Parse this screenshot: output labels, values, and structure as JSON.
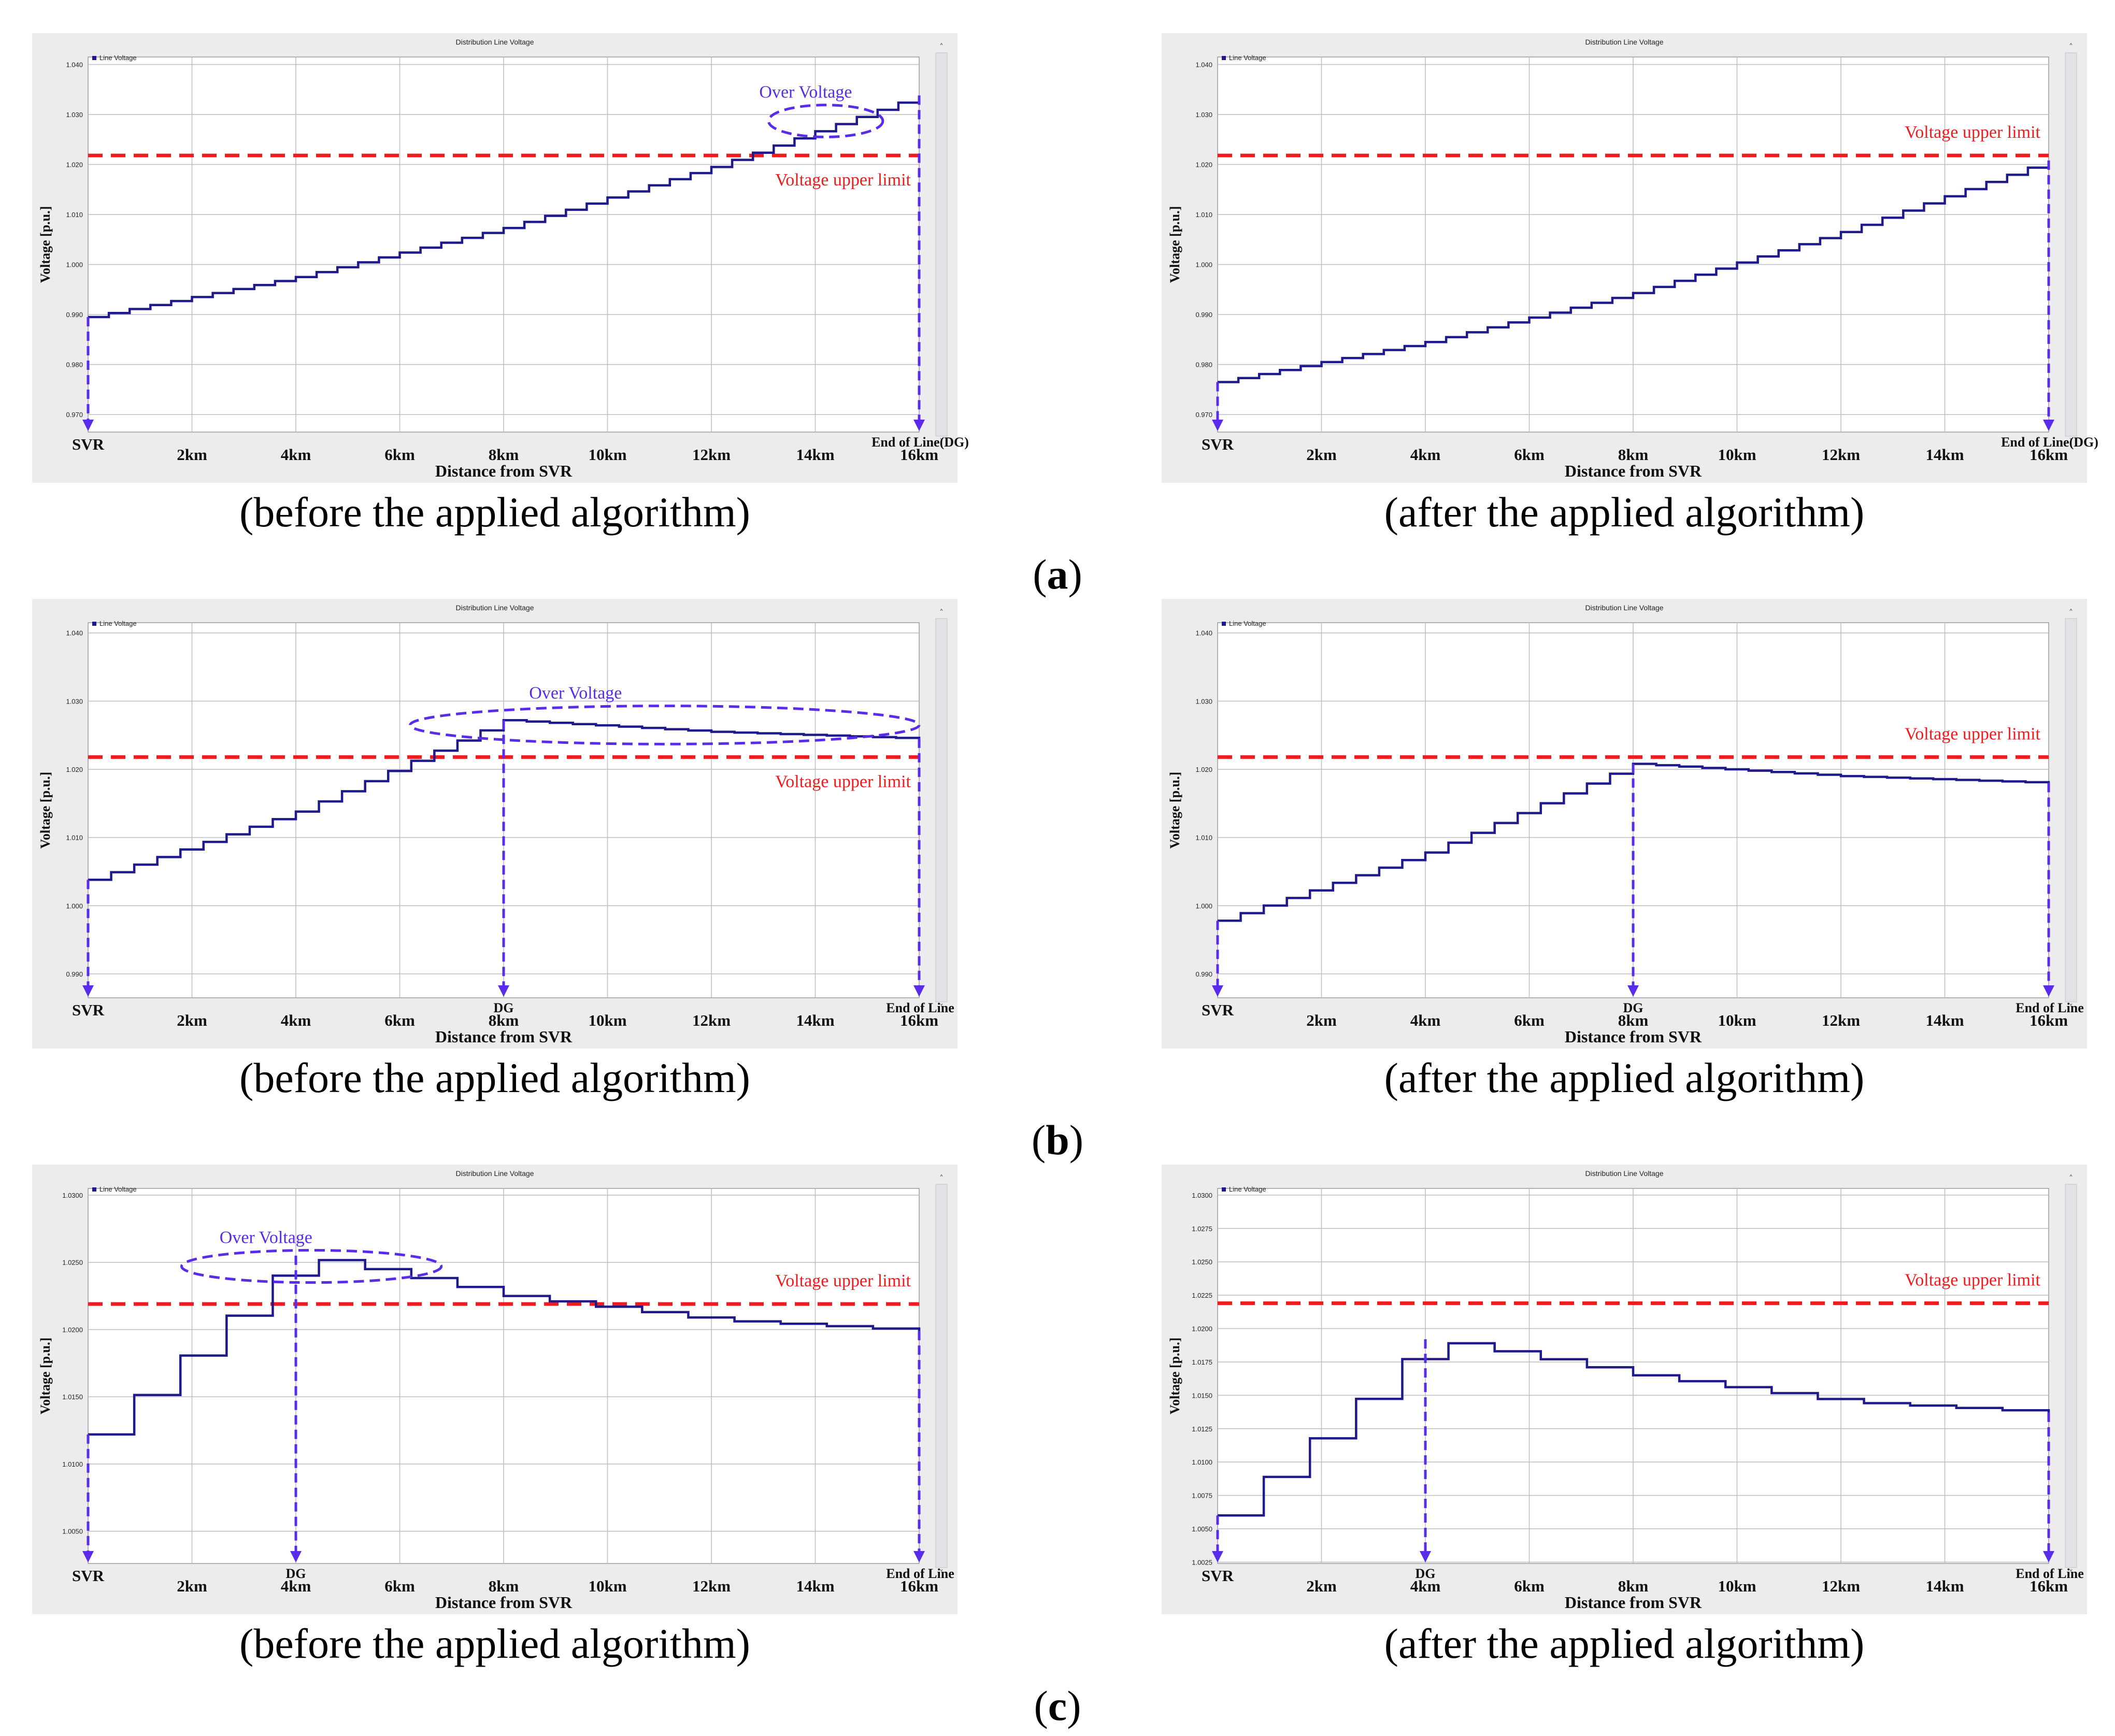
{
  "rows": [
    {
      "label_letter": "a",
      "caption_before": "(before the applied algorithm)",
      "caption_after": "(after the applied algorithm)"
    },
    {
      "label_letter": "b",
      "caption_before": "(before the applied algorithm)",
      "caption_after": "(after the applied algorithm)"
    },
    {
      "label_letter": "c",
      "caption_before": "(before the applied algorithm)",
      "caption_after": "(after the applied algorithm)"
    }
  ],
  "colors": {
    "line": "#1f1a8c",
    "limit": "#ee1c1c",
    "annotation": "#5b2bea",
    "grid": "#bcbcc4",
    "panel_bg": "#ececec",
    "plot_bg": "#ffffff"
  },
  "chart_data": [
    {
      "id": "a-before",
      "type": "line",
      "title": "Distribution Line Voltage",
      "legend": "Line Voltage",
      "legend_position": "top-left",
      "xlabel": "Distance from SVR",
      "ylabel": "Voltage [p.u.]",
      "xlim": [
        0,
        16
      ],
      "ylim": [
        0.9665,
        1.0415
      ],
      "yticks": [
        0.97,
        0.98,
        0.99,
        1.0,
        1.01,
        1.02,
        1.03,
        1.04
      ],
      "ytick_labels": [
        "0.970",
        "0.980",
        "0.990",
        "1.000",
        "1.010",
        "1.020",
        "1.030",
        "1.040"
      ],
      "xtick_labels": [
        {
          "x": 0,
          "text": "SVR"
        },
        {
          "x": 2,
          "text": "2km"
        },
        {
          "x": 4,
          "text": "4km"
        },
        {
          "x": 6,
          "text": "6km"
        },
        {
          "x": 8,
          "text": "8km"
        },
        {
          "x": 10,
          "text": "10km"
        },
        {
          "x": 12,
          "text": "12km"
        },
        {
          "x": 14,
          "text": "14km"
        },
        {
          "x": 16,
          "text": "16km"
        }
      ],
      "extra_xlabels": [
        {
          "x": 16,
          "text": "End of Line(DG)"
        }
      ],
      "limit": 1.0218,
      "limit_label": "Voltage upper limit",
      "limit_label_side": "below",
      "series": [
        {
          "name": "Line Voltage",
          "steps": 40,
          "points": [
            {
              "x": 0,
              "y": 0.9895
            },
            {
              "x": 4,
              "y": 0.9975
            },
            {
              "x": 8,
              "y": 1.0073
            },
            {
              "x": 12,
              "y": 1.0195
            },
            {
              "x": 16,
              "y": 1.0338
            }
          ]
        }
      ],
      "drops": [
        0,
        16
      ],
      "over_voltage": {
        "label": "Over Voltage",
        "center": [
          14.2,
          1.0287
        ],
        "rx": 1.1,
        "ry": 0.0032
      },
      "grid": true
    },
    {
      "id": "a-after",
      "type": "line",
      "title": "Distribution Line Voltage",
      "legend": "Line Voltage",
      "legend_position": "top-left",
      "xlabel": "Distance from SVR",
      "ylabel": "Voltage [p.u.]",
      "xlim": [
        0,
        16
      ],
      "ylim": [
        0.9665,
        1.0415
      ],
      "yticks": [
        0.97,
        0.98,
        0.99,
        1.0,
        1.01,
        1.02,
        1.03,
        1.04
      ],
      "ytick_labels": [
        "0.970",
        "0.980",
        "0.990",
        "1.000",
        "1.010",
        "1.020",
        "1.030",
        "1.040"
      ],
      "xtick_labels": [
        {
          "x": 0,
          "text": "SVR"
        },
        {
          "x": 2,
          "text": "2km"
        },
        {
          "x": 4,
          "text": "4km"
        },
        {
          "x": 6,
          "text": "6km"
        },
        {
          "x": 8,
          "text": "8km"
        },
        {
          "x": 10,
          "text": "10km"
        },
        {
          "x": 12,
          "text": "12km"
        },
        {
          "x": 14,
          "text": "14km"
        },
        {
          "x": 16,
          "text": "16km"
        }
      ],
      "extra_xlabels": [
        {
          "x": 16,
          "text": "End of Line(DG)"
        }
      ],
      "limit": 1.0218,
      "limit_label": "Voltage upper limit",
      "limit_label_side": "above",
      "series": [
        {
          "name": "Line Voltage",
          "steps": 40,
          "points": [
            {
              "x": 0,
              "y": 0.9765
            },
            {
              "x": 4,
              "y": 0.9845
            },
            {
              "x": 8,
              "y": 0.9943
            },
            {
              "x": 12,
              "y": 1.0065
            },
            {
              "x": 16,
              "y": 1.0208
            }
          ]
        }
      ],
      "drops": [
        0,
        16
      ],
      "over_voltage": null,
      "grid": true
    },
    {
      "id": "b-before",
      "type": "line",
      "title": "Distribution Line Voltage",
      "legend": "Line Voltage",
      "legend_position": "top-left",
      "xlabel": "Distance from SVR",
      "ylabel": "Voltage [p.u.]",
      "xlim": [
        0,
        16
      ],
      "ylim": [
        0.9865,
        1.0415
      ],
      "yticks": [
        0.99,
        1.0,
        1.01,
        1.02,
        1.03,
        1.04
      ],
      "ytick_labels": [
        "0.990",
        "1.000",
        "1.010",
        "1.020",
        "1.030",
        "1.040"
      ],
      "xtick_labels": [
        {
          "x": 0,
          "text": "SVR"
        },
        {
          "x": 2,
          "text": "2km"
        },
        {
          "x": 4,
          "text": "4km"
        },
        {
          "x": 6,
          "text": "6km"
        },
        {
          "x": 8,
          "text": "8km"
        },
        {
          "x": 10,
          "text": "10km"
        },
        {
          "x": 12,
          "text": "12km"
        },
        {
          "x": 14,
          "text": "14km"
        },
        {
          "x": 16,
          "text": "16km"
        }
      ],
      "extra_xlabels": [
        {
          "x": 8,
          "text": "DG"
        },
        {
          "x": 16,
          "text": "End of Line"
        }
      ],
      "limit": 1.0218,
      "limit_label": "Voltage upper limit",
      "limit_label_side": "below",
      "series": [
        {
          "name": "Line Voltage",
          "steps": 36,
          "points": [
            {
              "x": 0,
              "y": 1.0038
            },
            {
              "x": 4,
              "y": 1.0138
            },
            {
              "x": 8,
              "y": 1.0272
            },
            {
              "x": 12,
              "y": 1.0255
            },
            {
              "x": 16,
              "y": 1.0245
            }
          ]
        }
      ],
      "drops": [
        0,
        8,
        16
      ],
      "over_voltage": {
        "label": "Over Voltage",
        "center": [
          11.1,
          1.0265
        ],
        "rx": 4.9,
        "ry": 0.0028
      },
      "grid": true
    },
    {
      "id": "b-after",
      "type": "line",
      "title": "Distribution Line Voltage",
      "legend": "Line Voltage",
      "legend_position": "top-left",
      "xlabel": "Distance from SVR",
      "ylabel": "Voltage [p.u.]",
      "xlim": [
        0,
        16
      ],
      "ylim": [
        0.9865,
        1.0415
      ],
      "yticks": [
        0.99,
        1.0,
        1.01,
        1.02,
        1.03,
        1.04
      ],
      "ytick_labels": [
        "0.990",
        "1.000",
        "1.010",
        "1.020",
        "1.030",
        "1.040"
      ],
      "xtick_labels": [
        {
          "x": 0,
          "text": "SVR"
        },
        {
          "x": 2,
          "text": "2km"
        },
        {
          "x": 4,
          "text": "4km"
        },
        {
          "x": 6,
          "text": "6km"
        },
        {
          "x": 8,
          "text": "8km"
        },
        {
          "x": 10,
          "text": "10km"
        },
        {
          "x": 12,
          "text": "12km"
        },
        {
          "x": 14,
          "text": "14km"
        },
        {
          "x": 16,
          "text": "16km"
        }
      ],
      "extra_xlabels": [
        {
          "x": 8,
          "text": "DG"
        },
        {
          "x": 16,
          "text": "End of Line"
        }
      ],
      "limit": 1.0218,
      "limit_label": "Voltage upper limit",
      "limit_label_side": "above",
      "series": [
        {
          "name": "Line Voltage",
          "steps": 36,
          "points": [
            {
              "x": 0,
              "y": 0.9978
            },
            {
              "x": 4,
              "y": 1.0078
            },
            {
              "x": 8,
              "y": 1.0208
            },
            {
              "x": 12,
              "y": 1.019
            },
            {
              "x": 16,
              "y": 1.018
            }
          ]
        }
      ],
      "drops": [
        0,
        8,
        16
      ],
      "over_voltage": null,
      "grid": true
    },
    {
      "id": "c-before",
      "type": "line",
      "title": "Distribution Line Voltage",
      "legend": "Line Voltage",
      "legend_position": "top-left",
      "xlabel": "Distance from SVR",
      "ylabel": "Voltage [p.u.]",
      "xlim": [
        0,
        16
      ],
      "ylim": [
        1.0026,
        1.0305
      ],
      "yticks": [
        1.005,
        1.01,
        1.015,
        1.02,
        1.025,
        1.03
      ],
      "ytick_labels": [
        "1.0050",
        "1.0100",
        "1.0150",
        "1.0200",
        "1.0250",
        "1.0300"
      ],
      "xtick_labels": [
        {
          "x": 0,
          "text": "SVR"
        },
        {
          "x": 2,
          "text": "2km"
        },
        {
          "x": 4,
          "text": "4km"
        },
        {
          "x": 6,
          "text": "6km"
        },
        {
          "x": 8,
          "text": "8km"
        },
        {
          "x": 10,
          "text": "10km"
        },
        {
          "x": 12,
          "text": "12km"
        },
        {
          "x": 14,
          "text": "14km"
        },
        {
          "x": 16,
          "text": "16km"
        }
      ],
      "extra_xlabels": [
        {
          "x": 4,
          "text": "DG"
        },
        {
          "x": 16,
          "text": "End of Line"
        }
      ],
      "limit": 1.0219,
      "limit_label": "Voltage upper limit",
      "limit_label_side": "above",
      "series": [
        {
          "name": "Line Voltage",
          "steps": 18,
          "points": [
            {
              "x": 0,
              "y": 1.0122
            },
            {
              "x": 2,
              "y": 1.0188
            },
            {
              "x": 4,
              "y": 1.0255
            },
            {
              "x": 8,
              "y": 1.0225
            },
            {
              "x": 12,
              "y": 1.0207
            },
            {
              "x": 16,
              "y": 1.0199
            }
          ]
        }
      ],
      "drops": [
        0,
        4,
        16
      ],
      "over_voltage": {
        "label": "Over Voltage",
        "center": [
          4.3,
          1.0247
        ],
        "rx": 2.5,
        "ry": 0.0012
      },
      "grid": true
    },
    {
      "id": "c-after",
      "type": "line",
      "title": "Distribution Line Voltage",
      "legend": "Line Voltage",
      "legend_position": "top-left",
      "xlabel": "Distance from SVR",
      "ylabel": "Voltage [p.u.]",
      "xlim": [
        0,
        16
      ],
      "ylim": [
        1.0024,
        1.0305
      ],
      "yticks": [
        1.0025,
        1.005,
        1.0075,
        1.01,
        1.0125,
        1.015,
        1.0175,
        1.02,
        1.0225,
        1.025,
        1.0275,
        1.03
      ],
      "ytick_labels": [
        "1.0025",
        "1.0050",
        "1.0075",
        "1.0100",
        "1.0125",
        "1.0150",
        "1.0175",
        "1.0200",
        "1.0225",
        "1.0250",
        "1.0275",
        "1.0300"
      ],
      "xtick_labels": [
        {
          "x": 0,
          "text": "SVR"
        },
        {
          "x": 2,
          "text": "2km"
        },
        {
          "x": 4,
          "text": "4km"
        },
        {
          "x": 6,
          "text": "6km"
        },
        {
          "x": 8,
          "text": "8km"
        },
        {
          "x": 10,
          "text": "10km"
        },
        {
          "x": 12,
          "text": "12km"
        },
        {
          "x": 14,
          "text": "14km"
        },
        {
          "x": 16,
          "text": "16km"
        }
      ],
      "extra_xlabels": [
        {
          "x": 4,
          "text": "DG"
        },
        {
          "x": 16,
          "text": "End of Line"
        }
      ],
      "limit": 1.0219,
      "limit_label": "Voltage upper limit",
      "limit_label_side": "above",
      "series": [
        {
          "name": "Line Voltage",
          "steps": 18,
          "points": [
            {
              "x": 0,
              "y": 1.006
            },
            {
              "x": 2,
              "y": 1.0125
            },
            {
              "x": 4,
              "y": 1.0192
            },
            {
              "x": 8,
              "y": 1.0165
            },
            {
              "x": 12,
              "y": 1.0145
            },
            {
              "x": 16,
              "y": 1.0137
            }
          ]
        }
      ],
      "drops": [
        0,
        4,
        16
      ],
      "over_voltage": null,
      "grid": true
    }
  ]
}
